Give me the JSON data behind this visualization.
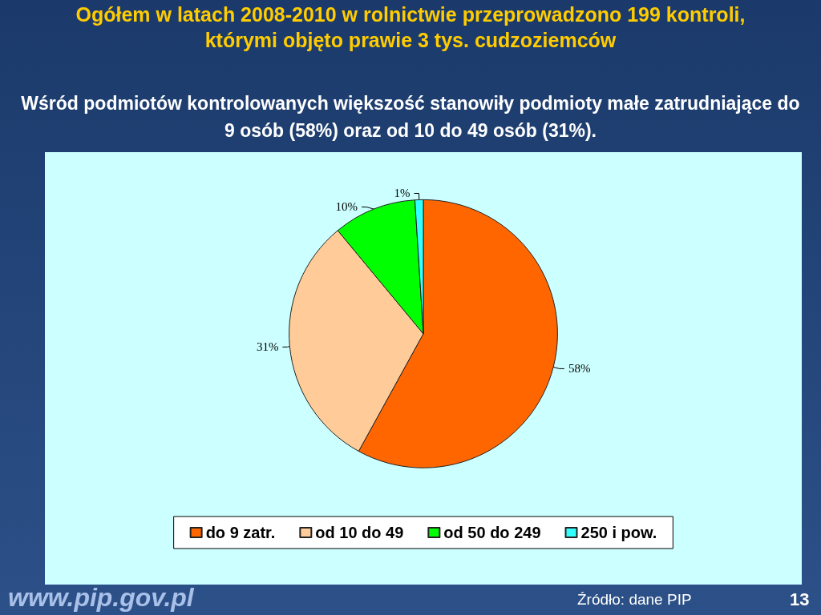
{
  "chart_data": {
    "type": "pie",
    "title": "Ogółem w latach 2008-2010 w rolnictwie przeprowadzono 199 kontroli, którymi objęto  prawie 3 tys. cudzoziemców",
    "subtitle": "Wśród podmiotów kontrolowanych większość stanowiły podmioty małe zatrudniające do 9 osób (58%) oraz od 10 do 49 osób (31%).",
    "categories": [
      "do 9 zatr.",
      "od 10 do 49",
      "od 50 do 249",
      "250 i pow."
    ],
    "values": [
      58,
      31,
      10,
      1
    ],
    "value_labels": [
      "58%",
      "31%",
      "10%",
      "1%"
    ],
    "colors": [
      "#ff6600",
      "#ffcc99",
      "#00ff00",
      "#33ffff"
    ],
    "legend": "bottom",
    "annotations": [
      "www.pip.gov.pl",
      "Źródło: dane PIP",
      "13"
    ]
  }
}
